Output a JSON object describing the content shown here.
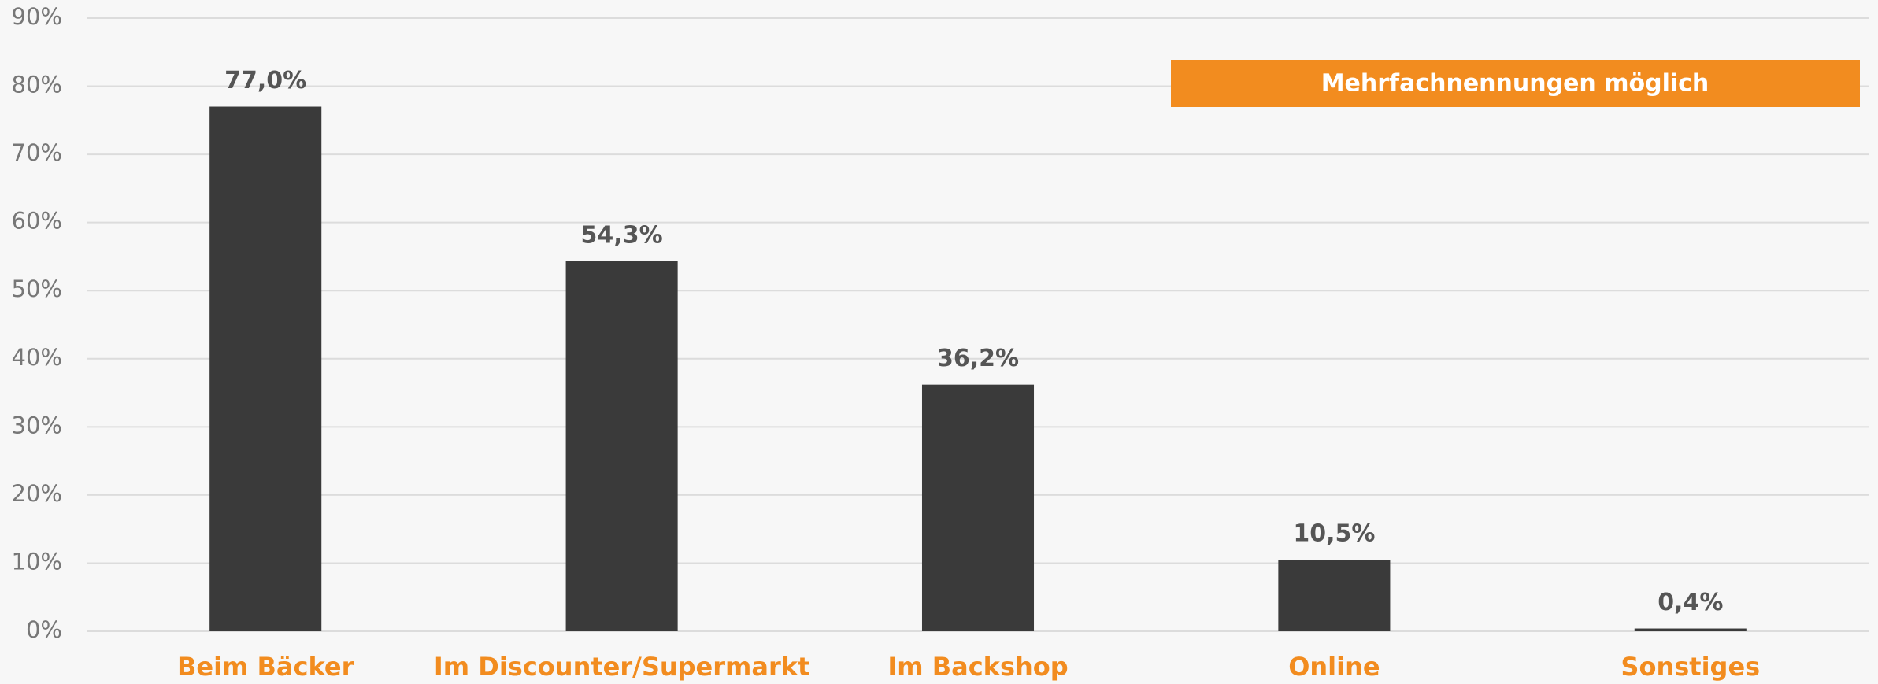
{
  "chart_data": {
    "type": "bar",
    "annotation": "Mehrfachnennungen möglich",
    "categories": [
      "Beim Bäcker",
      "Im Discounter/Supermarkt",
      "Im Backshop",
      "Online",
      "Sonstiges"
    ],
    "values": [
      77.0,
      54.3,
      36.2,
      10.5,
      0.4
    ],
    "value_labels": [
      "77,0%",
      "54,3%",
      "36,2%",
      "10,5%",
      "0,4%"
    ],
    "color": "#3a3a3a",
    "category_color": "#f28c1f",
    "annotation_color": "#f28c1f",
    "ylim": [
      0,
      90
    ],
    "yticks": [
      {
        "value": 0,
        "label": "0%"
      },
      {
        "value": 10,
        "label": "10%"
      },
      {
        "value": 20,
        "label": "20%"
      },
      {
        "value": 30,
        "label": "30%"
      },
      {
        "value": 40,
        "label": "40%"
      },
      {
        "value": 50,
        "label": "50%"
      },
      {
        "value": 60,
        "label": "60%"
      },
      {
        "value": 70,
        "label": "70%"
      },
      {
        "value": 80,
        "label": "80%"
      },
      {
        "value": 90,
        "label": "90%"
      }
    ],
    "grid": true
  }
}
